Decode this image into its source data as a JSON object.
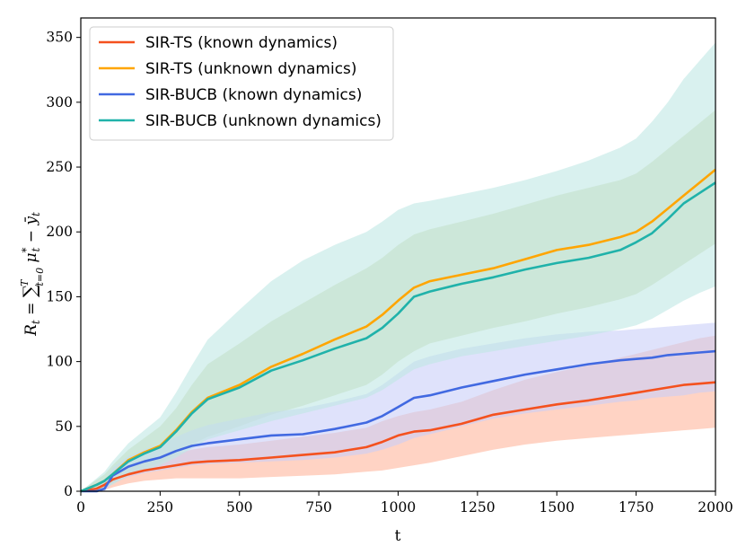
{
  "chart_data": {
    "type": "line",
    "title": "",
    "xlabel": "t",
    "ylabel": "R_t = Σ_{t=0}^{T} μ*_t − ȳ_t",
    "xlim": [
      0,
      2000
    ],
    "ylim": [
      0,
      365
    ],
    "xticks": [
      "0",
      "250",
      "500",
      "750",
      "1000",
      "1250",
      "1500",
      "1750",
      "2000"
    ],
    "yticks": [
      "0",
      "50",
      "100",
      "150",
      "200",
      "250",
      "300",
      "350"
    ],
    "legend_position": "top-left",
    "x": [
      0,
      50,
      75,
      100,
      150,
      200,
      250,
      300,
      350,
      400,
      500,
      600,
      700,
      800,
      900,
      950,
      1000,
      1050,
      1100,
      1200,
      1300,
      1400,
      1500,
      1600,
      1700,
      1750,
      1800,
      1850,
      1900,
      1950,
      2000
    ],
    "series": [
      {
        "name": "SIR-TS (known dynamics)",
        "color": "#F4511E",
        "fill": "#FFB59C",
        "values": [
          0,
          2,
          5,
          9,
          13,
          16,
          18,
          20,
          22,
          23,
          24,
          26,
          28,
          30,
          34,
          38,
          43,
          46,
          47,
          52,
          59,
          63,
          67,
          70,
          74,
          76,
          78,
          80,
          82,
          83,
          84
        ],
        "lower": [
          0,
          0,
          1,
          3,
          6,
          8,
          9,
          10,
          10,
          10,
          10,
          11,
          12,
          13,
          15,
          16,
          18,
          20,
          22,
          27,
          32,
          36,
          39,
          41,
          43,
          44,
          45,
          46,
          47,
          48,
          49
        ],
        "upper": [
          0,
          5,
          9,
          14,
          20,
          24,
          27,
          29,
          32,
          34,
          36,
          39,
          42,
          45,
          49,
          54,
          58,
          61,
          63,
          69,
          78,
          86,
          92,
          97,
          103,
          106,
          109,
          112,
          115,
          118,
          120
        ]
      },
      {
        "name": "SIR-TS (unknown dynamics)",
        "color": "#FFA500",
        "fill": "#C9D6A5",
        "values": [
          0,
          5,
          8,
          13,
          24,
          30,
          35,
          47,
          61,
          72,
          82,
          96,
          106,
          117,
          127,
          136,
          147,
          157,
          162,
          167,
          172,
          179,
          186,
          190,
          196,
          200,
          208,
          218,
          228,
          238,
          248
        ],
        "lower": [
          0,
          1,
          3,
          6,
          14,
          18,
          22,
          28,
          36,
          42,
          50,
          59,
          66,
          74,
          82,
          90,
          100,
          108,
          114,
          120,
          126,
          131,
          137,
          142,
          148,
          152,
          159,
          167,
          175,
          183,
          191
        ],
        "upper": [
          0,
          9,
          13,
          20,
          32,
          41,
          50,
          64,
          82,
          98,
          114,
          131,
          145,
          159,
          172,
          180,
          190,
          198,
          202,
          208,
          214,
          221,
          228,
          234,
          240,
          245,
          254,
          264,
          274,
          284,
          294
        ]
      },
      {
        "name": "SIR-BUCB (known dynamics)",
        "color": "#4169E1",
        "fill": "#C9CEF8",
        "values": [
          0,
          0,
          2,
          12,
          19,
          23,
          26,
          31,
          35,
          37,
          40,
          43,
          44,
          48,
          53,
          58,
          65,
          72,
          74,
          80,
          85,
          90,
          94,
          98,
          101,
          102,
          103,
          105,
          106,
          107,
          108
        ],
        "lower": [
          0,
          0,
          0,
          6,
          11,
          14,
          16,
          18,
          20,
          21,
          22,
          23,
          24,
          26,
          29,
          32,
          36,
          41,
          44,
          50,
          56,
          60,
          63,
          66,
          69,
          70,
          72,
          73,
          74,
          76,
          77
        ],
        "upper": [
          0,
          3,
          8,
          18,
          27,
          32,
          36,
          42,
          47,
          51,
          56,
          61,
          64,
          69,
          75,
          82,
          91,
          100,
          104,
          110,
          114,
          118,
          121,
          123,
          124,
          125,
          126,
          127,
          128,
          129,
          130
        ]
      },
      {
        "name": "SIR-BUCB (unknown dynamics)",
        "color": "#20B2AA",
        "fill": "#BFE7E5",
        "values": [
          0,
          5,
          8,
          13,
          23,
          29,
          34,
          46,
          60,
          71,
          80,
          93,
          101,
          110,
          118,
          126,
          137,
          150,
          154,
          160,
          165,
          171,
          176,
          180,
          186,
          192,
          199,
          210,
          222,
          230,
          238
        ],
        "lower": [
          0,
          1,
          3,
          5,
          12,
          16,
          20,
          26,
          33,
          40,
          47,
          54,
          60,
          66,
          72,
          78,
          86,
          94,
          98,
          104,
          108,
          112,
          116,
          120,
          125,
          128,
          133,
          140,
          147,
          153,
          158
        ],
        "upper": [
          0,
          10,
          15,
          23,
          37,
          47,
          57,
          76,
          97,
          117,
          140,
          162,
          178,
          190,
          200,
          208,
          217,
          222,
          224,
          229,
          234,
          240,
          247,
          255,
          265,
          272,
          285,
          300,
          318,
          332,
          346
        ]
      }
    ]
  }
}
